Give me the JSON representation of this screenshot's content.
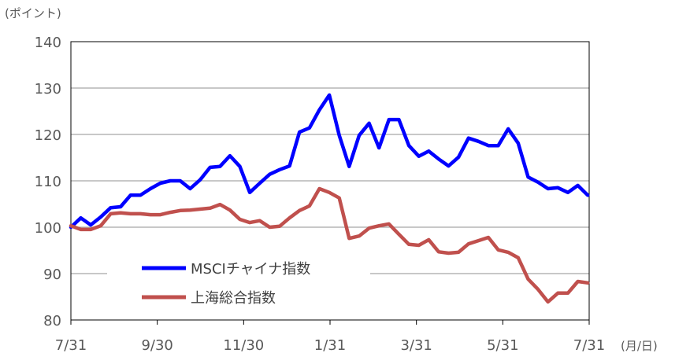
{
  "chart_data": {
    "type": "line",
    "title": "",
    "ylabel": "(ポイント)",
    "xlabel": "(月/日)",
    "ylim": [
      80,
      140
    ],
    "yticks": [
      "80",
      "90",
      "100",
      "110",
      "120",
      "130",
      "140"
    ],
    "xticks": [
      "7/31",
      "9/30",
      "11/30",
      "1/31",
      "3/31",
      "5/31",
      "7/31"
    ],
    "grid": true,
    "legend_position": "bottom-left",
    "x": [
      "7/31",
      "8/7",
      "8/14",
      "8/21",
      "8/28",
      "9/4",
      "9/11",
      "9/18",
      "9/25",
      "10/2",
      "10/9",
      "10/16",
      "10/23",
      "10/30",
      "11/6",
      "11/13",
      "11/20",
      "11/27",
      "12/4",
      "12/11",
      "12/18",
      "12/25",
      "1/1",
      "1/8",
      "1/15",
      "1/22",
      "1/29",
      "2/5",
      "2/12",
      "2/19",
      "2/26",
      "3/5",
      "3/12",
      "3/19",
      "3/26",
      "4/2",
      "4/9",
      "4/16",
      "4/23",
      "4/30",
      "5/7",
      "5/14",
      "5/21",
      "5/28",
      "6/4",
      "6/11",
      "6/18",
      "6/25",
      "7/2",
      "7/9",
      "7/16",
      "7/23",
      "7/30"
    ],
    "series": [
      {
        "name": "MSCIチャイナ指数",
        "color": "#0000FF",
        "values": [
          100.0,
          102.0,
          100.5,
          102.2,
          104.2,
          104.4,
          106.9,
          106.9,
          108.3,
          109.5,
          110.0,
          110.0,
          108.3,
          110.2,
          112.9,
          113.1,
          115.4,
          113.1,
          107.5,
          109.5,
          111.4,
          112.4,
          113.2,
          120.5,
          121.4,
          125.3,
          128.5,
          119.8,
          113.1,
          119.8,
          122.4,
          117.1,
          123.2,
          123.2,
          117.6,
          115.3,
          116.4,
          114.7,
          113.2,
          115.1,
          119.2,
          118.5,
          117.6,
          117.6,
          121.2,
          118.1,
          110.8,
          109.7,
          108.3,
          108.5,
          107.5,
          109.0,
          106.9
        ]
      },
      {
        "name": "上海総合指数",
        "color": "#C0504D",
        "values": [
          100.3,
          99.5,
          99.5,
          100.3,
          102.9,
          103.1,
          102.9,
          102.9,
          102.7,
          102.7,
          103.2,
          103.6,
          103.7,
          103.9,
          104.1,
          104.9,
          103.7,
          101.7,
          101.0,
          101.4,
          100.0,
          100.2,
          102.0,
          103.6,
          104.6,
          108.3,
          107.5,
          106.3,
          97.6,
          98.1,
          99.8,
          100.3,
          100.7,
          98.5,
          96.3,
          96.1,
          97.3,
          94.7,
          94.4,
          94.6,
          96.4,
          97.1,
          97.8,
          95.1,
          94.6,
          93.4,
          88.8,
          86.6,
          83.9,
          85.8,
          85.8,
          88.3,
          88.0
        ]
      }
    ]
  }
}
